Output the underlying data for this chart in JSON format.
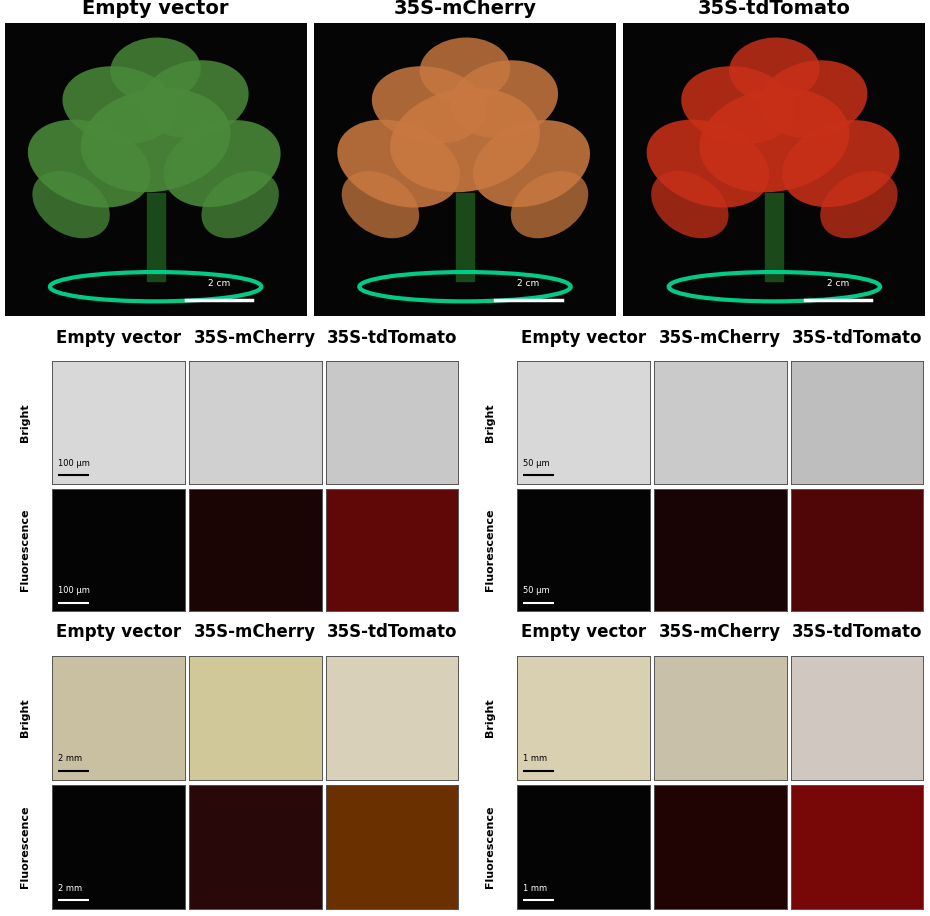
{
  "title_row1": [
    "Empty vector",
    "35S-mCherry",
    "35S-tdTomato"
  ],
  "title_row2_left": [
    "Empty vector",
    "35S-mCherry",
    "35S-tdTomato"
  ],
  "title_row2_right": [
    "Empty vector",
    "35S-mCherry",
    "35S-tdTomato"
  ],
  "title_row3_left": [
    "Empty vector",
    "35S-mCherry",
    "35S-tdTomato"
  ],
  "title_row3_right": [
    "Empty vector",
    "35S-mCherry",
    "35S-tdTomato"
  ],
  "row1_bg": "#050505",
  "row1_plant_colors": [
    "#4a8a3a",
    "#c87840",
    "#c83018"
  ],
  "row1_rim_color": "#00cc88",
  "row2_left_bright_colors": [
    "#d8d8d8",
    "#d0d0d0",
    "#c8c8c8"
  ],
  "row2_left_fluor_colors": [
    "#040404",
    "#1a0404",
    "#600808"
  ],
  "row2_right_bright_colors": [
    "#d8d8d8",
    "#cacaca",
    "#bebebe"
  ],
  "row2_right_fluor_colors": [
    "#040404",
    "#180404",
    "#500606"
  ],
  "row3_left_bright_colors": [
    "#c8c0a0",
    "#d0c898",
    "#d8d0b8"
  ],
  "row3_left_fluor_colors": [
    "#040404",
    "#280808",
    "#6a3000"
  ],
  "row3_right_bright_colors": [
    "#d8d0b0",
    "#c8c0a8",
    "#d0c8c0"
  ],
  "row3_right_fluor_colors": [
    "#040404",
    "#200404",
    "#780808"
  ],
  "row1_scale": "2 cm",
  "row2_left_bright_scale": "100 μm",
  "row2_left_fluor_scale": "100 μm",
  "row2_right_bright_scale": "50 μm",
  "row2_right_fluor_scale": "50 μm",
  "row3_left_bright_scale": "2 mm",
  "row3_left_fluor_scale": "2 mm",
  "row3_right_bright_scale": "1 mm",
  "row3_right_fluor_scale": "1 mm",
  "label_bright": "Bright",
  "label_fluorescence": "Fluorescence",
  "bg_color": "#ffffff",
  "title_fontsize": 12,
  "label_fontsize": 8,
  "scale_fontsize": 6,
  "row1_title_fontsize": 14
}
